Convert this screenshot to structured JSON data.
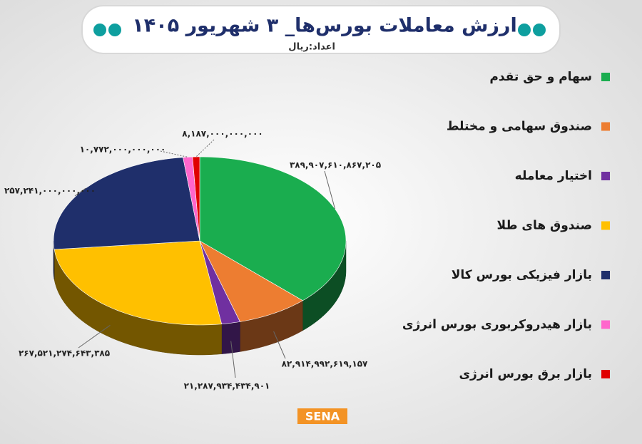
{
  "chart_data": {
    "type": "pie3d",
    "title": "ارزش معاملات بورس‌ها_ ۳ شهریور ۱۴۰۵",
    "subtitle": "اعداد:ریال",
    "categories": [
      "سهام و حق تقدم",
      "صندوق سهامی و مختلط",
      "اختیار معامله",
      "صندوق های طلا",
      "بازار فیزیکی بورس کالا",
      "بازار هیدروکربوری بورس انرژی",
      "بازار برق بورس انرژی"
    ],
    "values": [
      389907610867205,
      82914992619157,
      21287934434901,
      267521274643385,
      257241000000000,
      10772000000000,
      8187000000000
    ],
    "value_labels": [
      "۳۸۹,۹۰۷,۶۱۰,۸۶۷,۲۰۵",
      "۸۲,۹۱۴,۹۹۲,۶۱۹,۱۵۷",
      "۲۱,۲۸۷,۹۳۴,۴۳۴,۹۰۱",
      "۲۶۷,۵۲۱,۲۷۴,۶۴۳,۳۸۵",
      "۲۵۷,۲۴۱,۰۰۰,۰۰۰,۰۰۰",
      "۱۰,۷۷۲,۰۰۰,۰۰۰,۰۰۰",
      "۸,۱۸۷,۰۰۰,۰۰۰,۰۰۰"
    ],
    "colors": [
      "#1aad4f",
      "#ed7d31",
      "#7030a0",
      "#ffc000",
      "#1f2f6b",
      "#ff66cc",
      "#e00000"
    ],
    "legend": "right"
  },
  "logo": "SENA"
}
